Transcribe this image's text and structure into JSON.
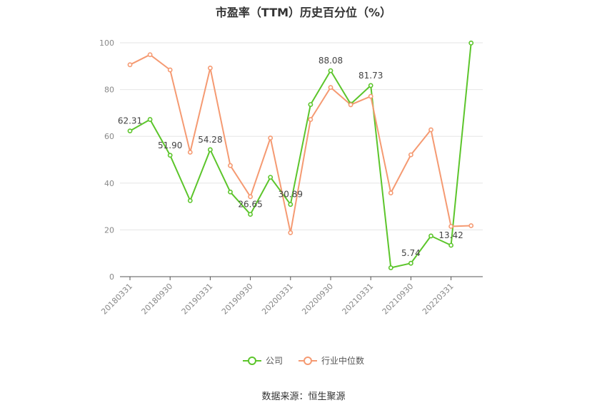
{
  "chart_data": {
    "type": "line",
    "title": "市盈率（TTM）历史百分位（%）",
    "x": [
      "20180331",
      "20180630",
      "20180930",
      "20181231",
      "20190331",
      "20190630",
      "20190930",
      "20191231",
      "20200331",
      "20200630",
      "20200930",
      "20201231",
      "20210331",
      "20210630",
      "20210930",
      "20211231",
      "20220331",
      "20220630"
    ],
    "x_tick_labels": [
      "20180331",
      "20180930",
      "20190331",
      "20190930",
      "20200331",
      "20200930",
      "20210331",
      "20210930",
      "20220331"
    ],
    "ylim": [
      0,
      100
    ],
    "y_ticks": [
      0,
      20,
      40,
      60,
      80,
      100
    ],
    "grid": true,
    "legend_position": "bottom",
    "series": [
      {
        "name": "公司",
        "color": "#5cc52b",
        "values": [
          62.31,
          67.2,
          51.9,
          32.5,
          54.28,
          36.2,
          26.65,
          42.5,
          30.89,
          73.6,
          88.08,
          73.8,
          81.73,
          3.8,
          5.74,
          17.4,
          13.42,
          99.9
        ],
        "labels": [
          "62.31",
          null,
          "51.90",
          null,
          "54.28",
          null,
          "26.65",
          null,
          "30.89",
          null,
          "88.08",
          null,
          "81.73",
          null,
          "5.74",
          null,
          "13.42",
          null
        ]
      },
      {
        "name": "行业中位数",
        "color": "#f59a72",
        "values": [
          90.6,
          94.9,
          88.4,
          53.2,
          89.2,
          47.5,
          34.2,
          59.3,
          18.8,
          67.2,
          80.9,
          73.5,
          77.1,
          35.8,
          52.1,
          62.8,
          21.5,
          21.8
        ],
        "labels": []
      }
    ]
  },
  "source": "数据来源：恒生聚源"
}
